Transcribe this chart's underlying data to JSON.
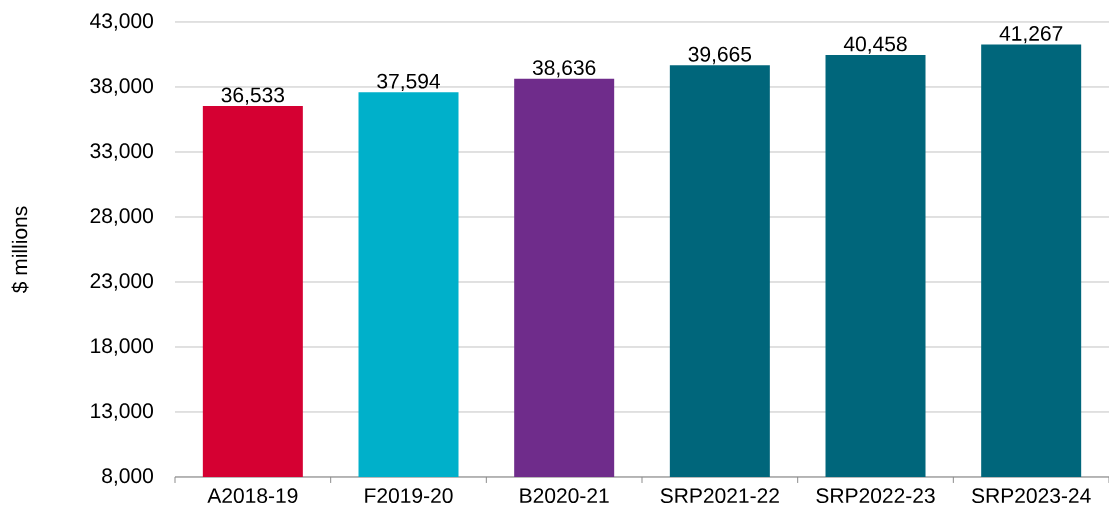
{
  "chart_data": {
    "type": "bar",
    "ylabel": "$ millions",
    "categories": [
      "A2018-19",
      "F2019-20",
      "B2020-21",
      "SRP2021-22",
      "SRP2022-23",
      "SRP2023-24"
    ],
    "values": [
      36533,
      37594,
      38636,
      39665,
      40458,
      41267
    ],
    "value_labels": [
      "36,533",
      "37,594",
      "38,636",
      "39,665",
      "40,458",
      "41,267"
    ],
    "colors": [
      "#d50032",
      "#00b0ca",
      "#6f2c8b",
      "#00667b",
      "#00667b",
      "#00667b"
    ],
    "ylim": [
      8000,
      43000
    ],
    "yticks": [
      {
        "value": 8000,
        "label": "8,000"
      },
      {
        "value": 13000,
        "label": "13,000"
      },
      {
        "value": 18000,
        "label": "18,000"
      },
      {
        "value": 23000,
        "label": "23,000"
      },
      {
        "value": 28000,
        "label": "28,000"
      },
      {
        "value": 33000,
        "label": "33,000"
      },
      {
        "value": 38000,
        "label": "38,000"
      },
      {
        "value": 43000,
        "label": "43,000"
      }
    ],
    "grid": "y"
  }
}
